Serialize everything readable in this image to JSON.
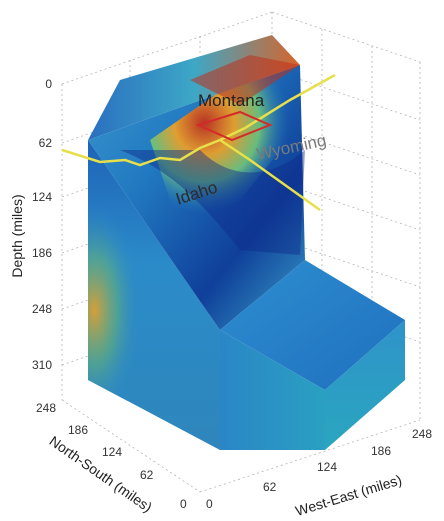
{
  "axes": {
    "z": {
      "label": "Depth (miles)",
      "ticks": [
        "0",
        "62",
        "124",
        "186",
        "248",
        "310"
      ]
    },
    "y": {
      "label": "North-South (miles)",
      "ticks": [
        "248",
        "186",
        "124",
        "62",
        "0"
      ]
    },
    "x": {
      "label": "West-East (miles)",
      "ticks": [
        "0",
        "62",
        "124",
        "186",
        "248"
      ]
    }
  },
  "places": {
    "montana": "Montana",
    "wyoming": "Wyoming",
    "idaho": "Idaho"
  },
  "colors": {
    "hot": "#c0301c",
    "warm": "#e9a02a",
    "cool": "#1f74c4",
    "cold": "#0d2a8a",
    "boundary": "#e8e04a",
    "yellowstone": "#d42a2a"
  }
}
